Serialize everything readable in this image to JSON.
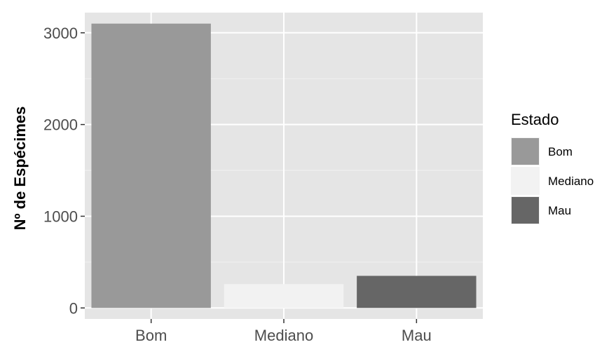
{
  "chart_data": {
    "type": "bar",
    "categories": [
      "Bom",
      "Mediano",
      "Mau"
    ],
    "values": [
      3100,
      260,
      350
    ],
    "xlabel": "",
    "ylabel": "Nº de Espécimes",
    "ylim": [
      -120,
      3220
    ],
    "yticks": [
      0,
      1000,
      2000,
      3000
    ],
    "grid": true,
    "legend": {
      "title": "Estado",
      "position": "right",
      "items": [
        {
          "label": "Bom",
          "color": "#999999"
        },
        {
          "label": "Mediano",
          "color": "#f2f2f2"
        },
        {
          "label": "Mau",
          "color": "#666666"
        }
      ]
    },
    "colors": [
      "#999999",
      "#f2f2f2",
      "#666666"
    ],
    "panel_background": "#e5e5e5"
  }
}
